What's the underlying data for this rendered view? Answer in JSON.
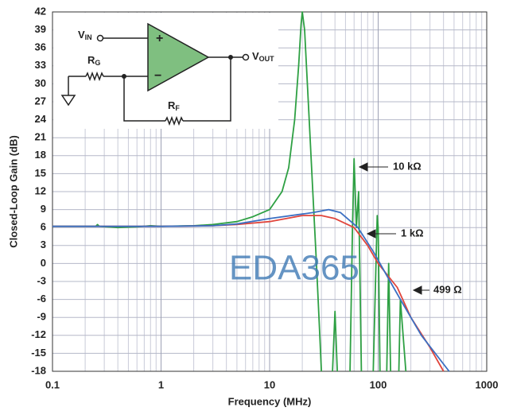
{
  "chart_data": {
    "type": "line",
    "x_label": "Frequency (MHz)",
    "y_label": "Closed-Loop Gain (dB)",
    "xlim": [
      0.1,
      1000
    ],
    "ylim": [
      -18,
      42
    ],
    "xticks": [
      0.1,
      1,
      10,
      100,
      1000
    ],
    "yticks": [
      -18,
      -15,
      -12,
      -9,
      -6,
      -3,
      0,
      3,
      6,
      9,
      12,
      15,
      18,
      21,
      24,
      27,
      30,
      33,
      36,
      39,
      42
    ],
    "x_scale": "log",
    "grid": true,
    "minor_grid": true,
    "series": [
      {
        "name": "10 kΩ",
        "color": "#2ea043",
        "x": [
          0.1,
          0.25,
          0.26,
          0.27,
          0.4,
          0.6,
          0.8,
          1,
          2,
          3,
          5,
          7,
          10,
          13,
          15,
          17,
          18.5,
          19.5,
          20,
          21,
          23,
          25,
          27,
          29,
          30,
          35,
          38,
          40,
          42,
          50,
          55,
          58,
          60,
          63,
          66,
          70,
          75,
          90,
          98,
          100,
          104,
          110,
          120,
          125,
          130,
          150,
          155,
          160,
          180,
          185,
          190
        ],
        "values": [
          6.2,
          6.2,
          6.5,
          6.2,
          6.0,
          6.1,
          6.3,
          6.2,
          6.3,
          6.5,
          7,
          7.8,
          9,
          12,
          16,
          24,
          33,
          40,
          42,
          39,
          25,
          12,
          0,
          -12,
          -18,
          null,
          -18,
          -8,
          -18,
          null,
          -18,
          6,
          17.5,
          6,
          12,
          -18,
          null,
          -18,
          8,
          6,
          -18,
          null,
          -18,
          0,
          -18,
          null,
          -18,
          -6,
          -18,
          null,
          -18
        ]
      },
      {
        "name": "1 kΩ",
        "color": "#e0453c",
        "x": [
          0.1,
          1,
          3,
          5,
          10,
          20,
          30,
          40,
          60,
          80,
          100,
          150,
          200,
          300,
          400
        ],
        "values": [
          6.2,
          6.2,
          6.3,
          6.5,
          7,
          8,
          8,
          7.5,
          6,
          3,
          0,
          -4,
          -9,
          -14,
          -18
        ]
      },
      {
        "name": "499 Ω",
        "color": "#3b6fc2",
        "x": [
          0.1,
          1,
          3,
          5,
          10,
          25,
          35,
          45,
          65,
          90,
          120,
          160,
          250,
          450
        ],
        "values": [
          6.2,
          6.2,
          6.3,
          6.6,
          7.5,
          8.5,
          9,
          8.5,
          6,
          2,
          -2,
          -6,
          -12,
          -18
        ]
      }
    ],
    "watermark": "EDA365",
    "inset": {
      "vin": [
        "V",
        "IN"
      ],
      "vout": [
        "V",
        "OUT"
      ],
      "rg": [
        "R",
        "G"
      ],
      "rf": [
        "R",
        "F"
      ],
      "plus": "+",
      "minus": "−"
    }
  }
}
